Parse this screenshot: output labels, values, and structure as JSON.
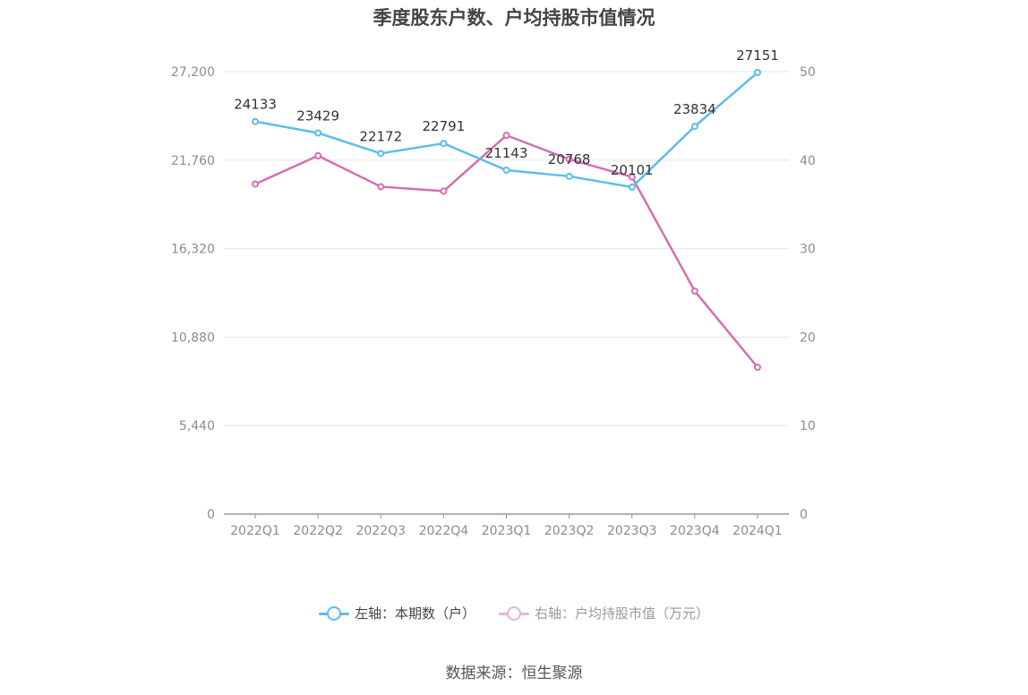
{
  "chart_data": {
    "type": "line",
    "title": "季度股东户数、户均持股市值情况",
    "categories": [
      "2022Q1",
      "2022Q2",
      "2022Q3",
      "2022Q4",
      "2023Q1",
      "2023Q2",
      "2023Q3",
      "2023Q4",
      "2024Q1"
    ],
    "left_axis": {
      "min": 0,
      "max": 27200,
      "ticks": [
        "0",
        "5,440",
        "10,880",
        "16,320",
        "21,760",
        "27,200"
      ],
      "tick_values": [
        0,
        5440,
        10880,
        16320,
        21760,
        27200
      ]
    },
    "right_axis": {
      "min": 0,
      "max": 50,
      "ticks": [
        "0",
        "10",
        "20",
        "30",
        "40",
        "50"
      ],
      "tick_values": [
        0,
        10,
        20,
        30,
        40,
        50
      ]
    },
    "series": [
      {
        "name": "左轴：本期数（户）",
        "axis": "left",
        "color": "#5bbdea",
        "values": [
          24133,
          23429,
          22172,
          22791,
          21143,
          20768,
          20101,
          23834,
          27151
        ],
        "labels": [
          "24133",
          "23429",
          "22172",
          "22791",
          "21143",
          "20768",
          "20101",
          "23834",
          "27151"
        ]
      },
      {
        "name": "右轴：户均持股市值（万元）",
        "axis": "right",
        "color": "#d46eb0",
        "values": [
          37.3,
          40.5,
          37.0,
          36.5,
          42.8,
          40.1,
          38.1,
          25.2,
          16.6
        ]
      }
    ],
    "grid": true,
    "legend_position": "bottom"
  },
  "source": "数据来源：恒生聚源"
}
